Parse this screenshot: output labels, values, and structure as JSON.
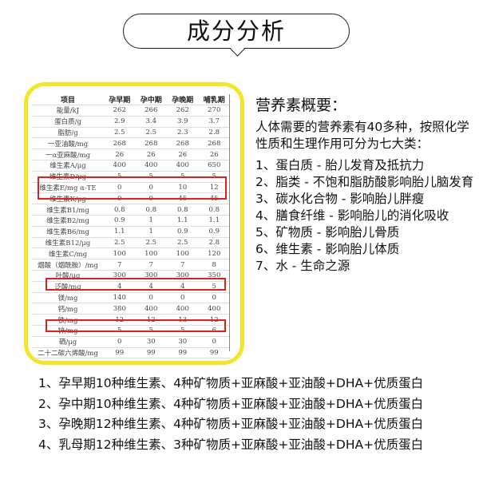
{
  "title": "成分分析",
  "table": {
    "headers": [
      "项目",
      "孕早期",
      "孕中期",
      "孕晚期",
      "哺乳期"
    ],
    "rows": [
      [
        "能量/kJ",
        "262",
        "266",
        "262",
        "270"
      ],
      [
        "蛋白质/g",
        "2.9",
        "3.4",
        "3.9",
        "3.7"
      ],
      [
        "脂肪/g",
        "2.5",
        "2.5",
        "2.3",
        "2.8"
      ],
      [
        "一亚油酸/mg",
        "268",
        "268",
        "268",
        "268"
      ],
      [
        "一α亚麻酸/mg",
        "26",
        "26",
        "26",
        "26"
      ],
      [
        "维生素A/μg",
        "400",
        "400",
        "400",
        "650"
      ],
      [
        "维生素D/μg",
        "5",
        "5",
        "5",
        "5"
      ],
      [
        "维生素E/mg α-TE",
        "0",
        "0",
        "10",
        "12"
      ],
      [
        "维生素K/μg",
        "0",
        "0",
        "45",
        "45"
      ],
      [
        "维生素B1/mg",
        "0.8",
        "0.8",
        "0.8",
        "0.8"
      ],
      [
        "维生素B2/mg",
        "0.9",
        "1",
        "1.1",
        "1.1"
      ],
      [
        "维生素B6/mg",
        "1.1",
        "1",
        "0.9",
        "0.9"
      ],
      [
        "维生素B12/μg",
        "2.5",
        "2.5",
        "2.5",
        "2.8"
      ],
      [
        "维生素C/mg",
        "100",
        "100",
        "100",
        "120"
      ],
      [
        "烟酸（烟酰胺）/mg",
        "7",
        "7",
        "7",
        "8"
      ],
      [
        "叶酸/μg",
        "300",
        "300",
        "300",
        "350"
      ],
      [
        "泛酸/mg",
        "4",
        "4",
        "4",
        "5"
      ],
      [
        "镁/mg",
        "140",
        "0",
        "0",
        "0"
      ],
      [
        "钙/mg",
        "380",
        "400",
        "400",
        "400"
      ],
      [
        "铁/mg",
        "12",
        "12",
        "13",
        "12"
      ],
      [
        "锌/mg",
        "5",
        "5",
        "5",
        "6"
      ],
      [
        "硒/μg",
        "0",
        "30",
        "30",
        "0"
      ],
      [
        "二十二碳六烯酸/mg",
        "99",
        "99",
        "99",
        "99"
      ]
    ]
  },
  "summary": {
    "heading": "营养素概要：",
    "intro": "人体需要的营养素有40多种，按照化学性质和生理作用可分为七大类：",
    "items": [
      "1、蛋白质 - 胎儿发育及抵抗力",
      "2、脂类 - 不饱和脂肪酸影响胎儿脑发育",
      "3、碳水化合物 - 影响胎儿胖瘦",
      "4、膳食纤维 - 影响胎儿的消化吸收",
      "5、矿物质 - 影响胎儿骨质",
      "6、维生素 - 影响胎儿体质",
      "7、水 -  生命之源"
    ]
  },
  "bottom": [
    "1、孕早期10种维生素、4种矿物质+亚麻酸+亚油酸+DHA+优质蛋白",
    "2、孕中期10种维生素、4种矿物质+亚麻酸+亚油酸+DHA+优质蛋白",
    "3、孕晚期12种维生素、4种矿物质+亚麻酸+亚油酸+DHA+优质蛋白",
    "4、乳母期12种维生素、3种矿物质+亚麻酸+亚油酸+DHA+优质蛋白"
  ],
  "colors": {
    "frame": "#f5e52a",
    "highlight": "#e02020"
  }
}
